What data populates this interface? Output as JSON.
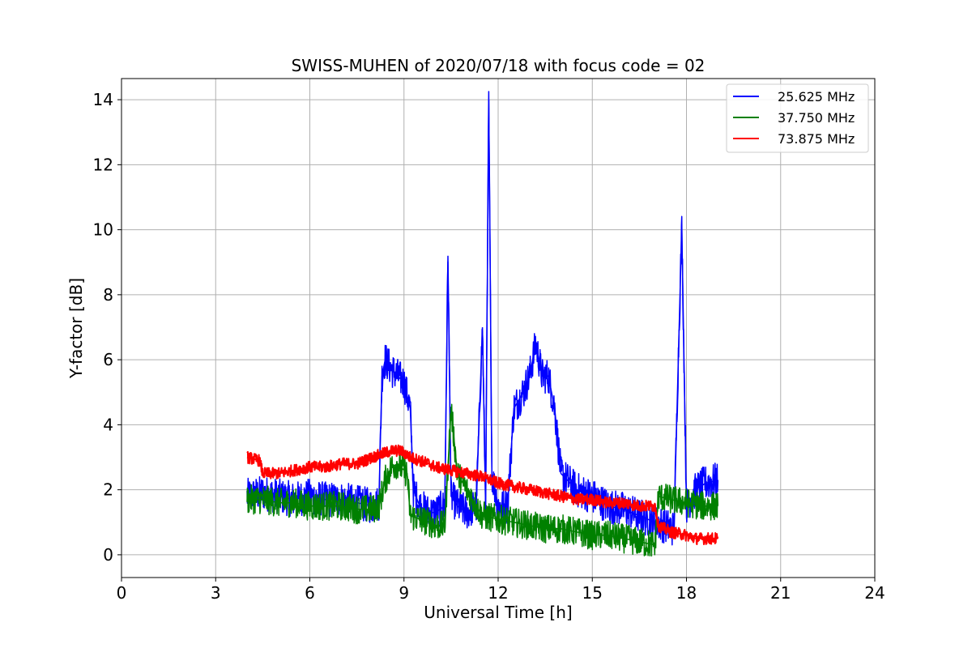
{
  "chart_data": {
    "type": "line",
    "title": "SWISS-MUHEN of 2020/07/18 with focus code = 02",
    "xlabel": "Universal Time [h]",
    "ylabel": "Y-factor [dB]",
    "xlim": [
      0,
      24
    ],
    "ylim": [
      -0.7,
      14.65
    ],
    "xticks": [
      0,
      3,
      6,
      9,
      12,
      15,
      18,
      21,
      24
    ],
    "yticks": [
      0,
      2,
      4,
      6,
      8,
      10,
      12,
      14
    ],
    "grid": true,
    "legend_position": "top-right",
    "series": [
      {
        "name": "25.625 MHz",
        "color": "#0000ff",
        "x": [
          4.0,
          4.5,
          5.0,
          5.5,
          6.0,
          6.5,
          7.0,
          7.5,
          8.0,
          8.2,
          8.3,
          8.4,
          8.6,
          8.8,
          9.0,
          9.2,
          9.3,
          9.5,
          9.8,
          10.0,
          10.3,
          10.4,
          10.5,
          10.7,
          11.0,
          11.3,
          11.5,
          11.6,
          11.7,
          11.8,
          12.0,
          12.3,
          12.5,
          12.8,
          13.0,
          13.2,
          13.4,
          13.6,
          13.8,
          14.0,
          14.3,
          14.5,
          15.0,
          15.5,
          16.0,
          16.5,
          17.0,
          17.3,
          17.6,
          17.85,
          18.0,
          18.3,
          18.6,
          19.0
        ],
        "y": [
          1.8,
          1.9,
          1.8,
          1.7,
          1.8,
          1.7,
          1.7,
          1.6,
          1.5,
          1.6,
          5.5,
          6.0,
          5.7,
          5.5,
          5.3,
          4.5,
          2.0,
          1.5,
          1.3,
          1.3,
          1.5,
          9.2,
          1.8,
          1.5,
          1.3,
          1.5,
          7.0,
          1.5,
          14.0,
          2.5,
          1.5,
          1.5,
          4.5,
          5.0,
          5.5,
          6.5,
          5.5,
          5.5,
          4.5,
          2.5,
          2.2,
          2.0,
          1.8,
          1.5,
          1.4,
          1.2,
          1.0,
          0.9,
          0.8,
          10.1,
          1.5,
          2.0,
          2.2,
          2.3
        ]
      },
      {
        "name": "37.750 MHz",
        "color": "#008000",
        "x": [
          4.0,
          4.5,
          5.0,
          5.5,
          6.0,
          6.5,
          7.0,
          7.5,
          8.0,
          8.2,
          8.4,
          8.6,
          8.8,
          9.0,
          9.1,
          9.2,
          9.5,
          9.8,
          10.0,
          10.3,
          10.5,
          10.7,
          11.0,
          11.3,
          11.5,
          12.0,
          12.5,
          13.0,
          13.5,
          14.0,
          14.5,
          15.0,
          15.5,
          16.0,
          16.5,
          17.0,
          17.1,
          17.5,
          18.0,
          18.5,
          19.0
        ],
        "y": [
          1.7,
          1.7,
          1.6,
          1.6,
          1.5,
          1.5,
          1.5,
          1.4,
          1.4,
          1.5,
          2.3,
          2.7,
          2.8,
          2.6,
          2.5,
          1.2,
          1.1,
          1.0,
          0.9,
          0.9,
          4.5,
          2.5,
          2.0,
          1.5,
          1.2,
          1.1,
          1.0,
          0.9,
          0.8,
          0.8,
          0.7,
          0.6,
          0.6,
          0.5,
          0.4,
          0.3,
          1.8,
          1.7,
          1.6,
          1.5,
          1.5
        ]
      },
      {
        "name": "73.875 MHz",
        "color": "#ff0000",
        "x": [
          4.0,
          4.4,
          4.5,
          5.0,
          5.5,
          6.0,
          6.5,
          7.0,
          7.5,
          8.0,
          8.3,
          8.6,
          8.9,
          9.2,
          9.5,
          9.8,
          10.0,
          10.5,
          11.0,
          11.5,
          12.0,
          12.5,
          13.0,
          13.5,
          14.0,
          14.5,
          15.0,
          15.5,
          16.0,
          16.5,
          17.0,
          17.1,
          17.5,
          18.0,
          18.3,
          18.6,
          19.0
        ],
        "y": [
          3.0,
          2.9,
          2.5,
          2.5,
          2.6,
          2.7,
          2.7,
          2.8,
          2.8,
          3.0,
          3.1,
          3.2,
          3.2,
          3.0,
          2.9,
          2.8,
          2.7,
          2.6,
          2.5,
          2.4,
          2.2,
          2.1,
          2.0,
          1.9,
          1.8,
          1.7,
          1.7,
          1.6,
          1.6,
          1.5,
          1.5,
          0.9,
          0.7,
          0.6,
          0.5,
          0.5,
          0.5
        ]
      }
    ]
  }
}
